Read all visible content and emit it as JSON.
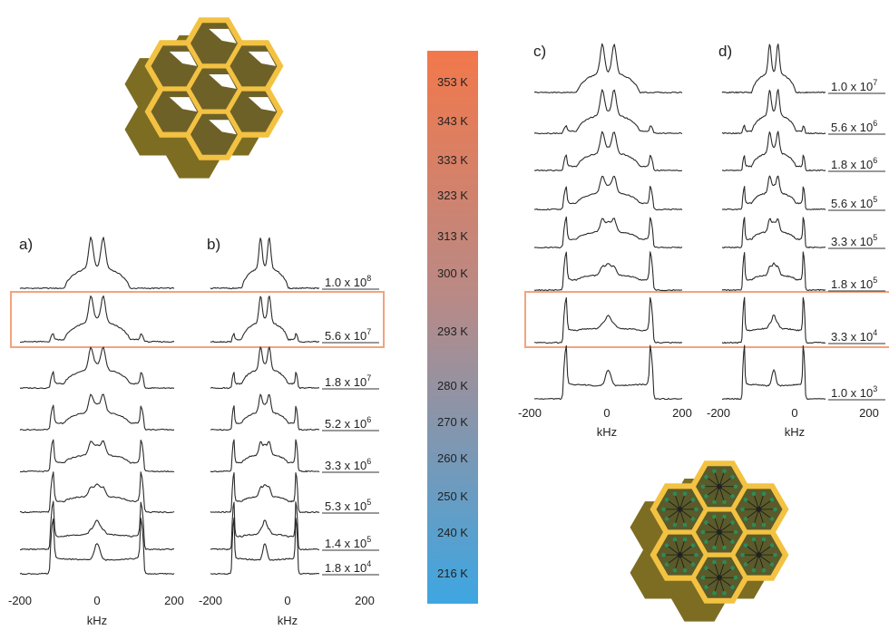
{
  "panels": {
    "a": {
      "label": "a)",
      "xticks": [
        "-200",
        "0",
        "200"
      ],
      "xlabel": "kHz"
    },
    "b": {
      "label": "b)",
      "xticks": [
        "-200",
        "0",
        "200"
      ],
      "xlabel": "kHz",
      "rates": [
        {
          "mant": "1.0 x 10",
          "exp": "8"
        },
        {
          "mant": "5.6 x 10",
          "exp": "7"
        },
        {
          "mant": "1.8 x 10",
          "exp": "7"
        },
        {
          "mant": "5.2 x 10",
          "exp": "6"
        },
        {
          "mant": "3.3 x 10",
          "exp": "6"
        },
        {
          "mant": "5.3 x 10",
          "exp": "5"
        },
        {
          "mant": "1.4 x 10",
          "exp": "5"
        },
        {
          "mant": "1.8 x 10",
          "exp": "4"
        }
      ]
    },
    "c": {
      "label": "c)",
      "xticks": [
        "-200",
        "0",
        "200"
      ],
      "xlabel": "kHz"
    },
    "d": {
      "label": "d)",
      "xticks": [
        "-200",
        "0",
        "200"
      ],
      "xlabel": "kHz",
      "rates": [
        {
          "mant": "1.0 x 10",
          "exp": "7"
        },
        {
          "mant": "5.6 x 10",
          "exp": "6"
        },
        {
          "mant": "1.8 x 10",
          "exp": "6"
        },
        {
          "mant": "5.6 x 10",
          "exp": "5"
        },
        {
          "mant": "3.3 x 10",
          "exp": "5"
        },
        {
          "mant": "1.8 x 10",
          "exp": "5"
        },
        {
          "mant": "3.3 x 10",
          "exp": "4"
        },
        {
          "mant": "1.0 x 10",
          "exp": "3"
        }
      ]
    }
  },
  "temperature_scale": [
    "353 K",
    "343 K",
    "333 K",
    "323 K",
    "313 K",
    "300 K",
    "293 K",
    "280 K",
    "270 K",
    "260 K",
    "250 K",
    "240 K",
    "216 K"
  ],
  "colors": {
    "hot": "#f2784b",
    "mid": "#b88a87",
    "cold": "#3ea6e2",
    "highlight_box": "#f3a37c",
    "honeycomb_face": "#f3c242",
    "honeycomb_side": "#7d6d22",
    "guest_molecule": "#2e8b57"
  },
  "icons": [
    "empty-honeycomb-icon",
    "filled-honeycomb-icon"
  ]
}
